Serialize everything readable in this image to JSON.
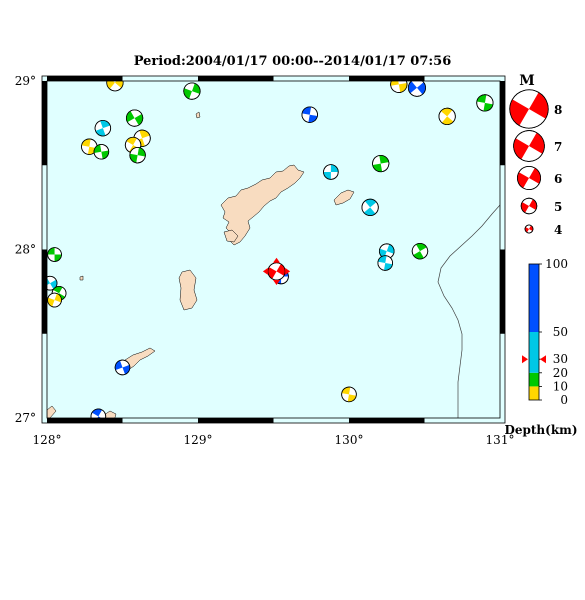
{
  "map": {
    "title": "Period:2004/01/17 00:00--2014/01/17 07:56",
    "lat_labels": [
      "29°",
      "28°",
      "27°"
    ],
    "lon_labels": [
      "128°",
      "129°",
      "130°",
      "131°"
    ],
    "extent": {
      "lon": [
        128,
        131
      ],
      "lat": [
        27,
        29
      ]
    }
  },
  "legend": {
    "magnitude_title": "M",
    "magnitudes": [
      "8",
      "7",
      "6",
      "5",
      "4"
    ],
    "depth_ticks": [
      "100",
      "50",
      "30",
      "20",
      "10",
      "0"
    ],
    "depth_label": "Depth(km)",
    "current_depth": 30
  },
  "colors": {
    "sea": "#e0ffff",
    "land": "#f8dcc0",
    "depth_0_10": "#ffd700",
    "depth_10_20": "#00c800",
    "depth_20_50": "#00c8e6",
    "depth_50_100": "#0050ff",
    "depth_100plus": "#0000a0",
    "highlight": "#ff0000"
  },
  "events": [
    {
      "lon": 128.45,
      "lat": 28.99,
      "mag": 5.0,
      "color": "#ffd700",
      "rot": 40
    },
    {
      "lon": 128.96,
      "lat": 28.94,
      "mag": 5.0,
      "color": "#00c800",
      "rot": 20
    },
    {
      "lon": 128.37,
      "lat": 28.72,
      "mag": 4.9,
      "color": "#00c8e6",
      "rot": -20
    },
    {
      "lon": 128.58,
      "lat": 28.78,
      "mag": 5.0,
      "color": "#00c800",
      "rot": 60
    },
    {
      "lon": 128.28,
      "lat": 28.61,
      "mag": 4.9,
      "color": "#ffd700",
      "rot": 100
    },
    {
      "lon": 128.36,
      "lat": 28.58,
      "mag": 4.8,
      "color": "#00c800",
      "rot": 80
    },
    {
      "lon": 128.63,
      "lat": 28.66,
      "mag": 5.0,
      "color": "#ffd700",
      "rot": 160
    },
    {
      "lon": 128.57,
      "lat": 28.62,
      "mag": 4.9,
      "color": "#ffd700",
      "rot": 120
    },
    {
      "lon": 128.6,
      "lat": 28.56,
      "mag": 4.9,
      "color": "#00c800",
      "rot": 10
    },
    {
      "lon": 129.74,
      "lat": 28.8,
      "mag": 4.9,
      "color": "#0050ff",
      "rot": 100
    },
    {
      "lon": 130.33,
      "lat": 28.98,
      "mag": 5.0,
      "color": "#ffd700",
      "rot": 80
    },
    {
      "lon": 130.45,
      "lat": 28.96,
      "mag": 5.1,
      "color": "#0050ff",
      "rot": 50
    },
    {
      "lon": 130.65,
      "lat": 28.79,
      "mag": 5.0,
      "color": "#ffd700",
      "rot": 130
    },
    {
      "lon": 130.9,
      "lat": 28.87,
      "mag": 5.0,
      "color": "#00c800",
      "rot": 100
    },
    {
      "lon": 129.88,
      "lat": 28.46,
      "mag": 4.8,
      "color": "#00c8e6",
      "rot": 0
    },
    {
      "lon": 130.21,
      "lat": 28.51,
      "mag": 5.0,
      "color": "#00c800",
      "rot": 170
    },
    {
      "lon": 130.14,
      "lat": 28.25,
      "mag": 5.0,
      "color": "#00c8e6",
      "rot": 140
    },
    {
      "lon": 130.25,
      "lat": 27.99,
      "mag": 4.8,
      "color": "#00c8e6",
      "rot": 20
    },
    {
      "lon": 130.24,
      "lat": 27.92,
      "mag": 4.8,
      "color": "#00c8e6",
      "rot": 100
    },
    {
      "lon": 130.47,
      "lat": 27.99,
      "mag": 4.9,
      "color": "#00c800",
      "rot": 150
    },
    {
      "lon": 128.05,
      "lat": 27.97,
      "mag": 4.7,
      "color": "#00c800",
      "rot": 90
    },
    {
      "lon": 128.02,
      "lat": 27.8,
      "mag": 4.7,
      "color": "#00c8e6",
      "rot": 60
    },
    {
      "lon": 128.08,
      "lat": 27.74,
      "mag": 4.7,
      "color": "#00c800",
      "rot": 120
    },
    {
      "lon": 128.05,
      "lat": 27.7,
      "mag": 4.7,
      "color": "#ffd700",
      "rot": 20
    },
    {
      "lon": 128.5,
      "lat": 27.3,
      "mag": 4.8,
      "color": "#0050ff",
      "rot": 70
    },
    {
      "lon": 130.0,
      "lat": 27.14,
      "mag": 4.8,
      "color": "#ffd700",
      "rot": 100
    },
    {
      "lon": 128.34,
      "lat": 27.01,
      "mag": 4.8,
      "color": "#0050ff",
      "rot": 120
    },
    {
      "lon": 129.55,
      "lat": 27.84,
      "mag": 4.8,
      "color": "#0050ff",
      "rot": 0
    },
    {
      "lon": 129.52,
      "lat": 27.87,
      "mag": 5.1,
      "color": "#ff0000",
      "rot": 30,
      "highlight": true
    }
  ]
}
